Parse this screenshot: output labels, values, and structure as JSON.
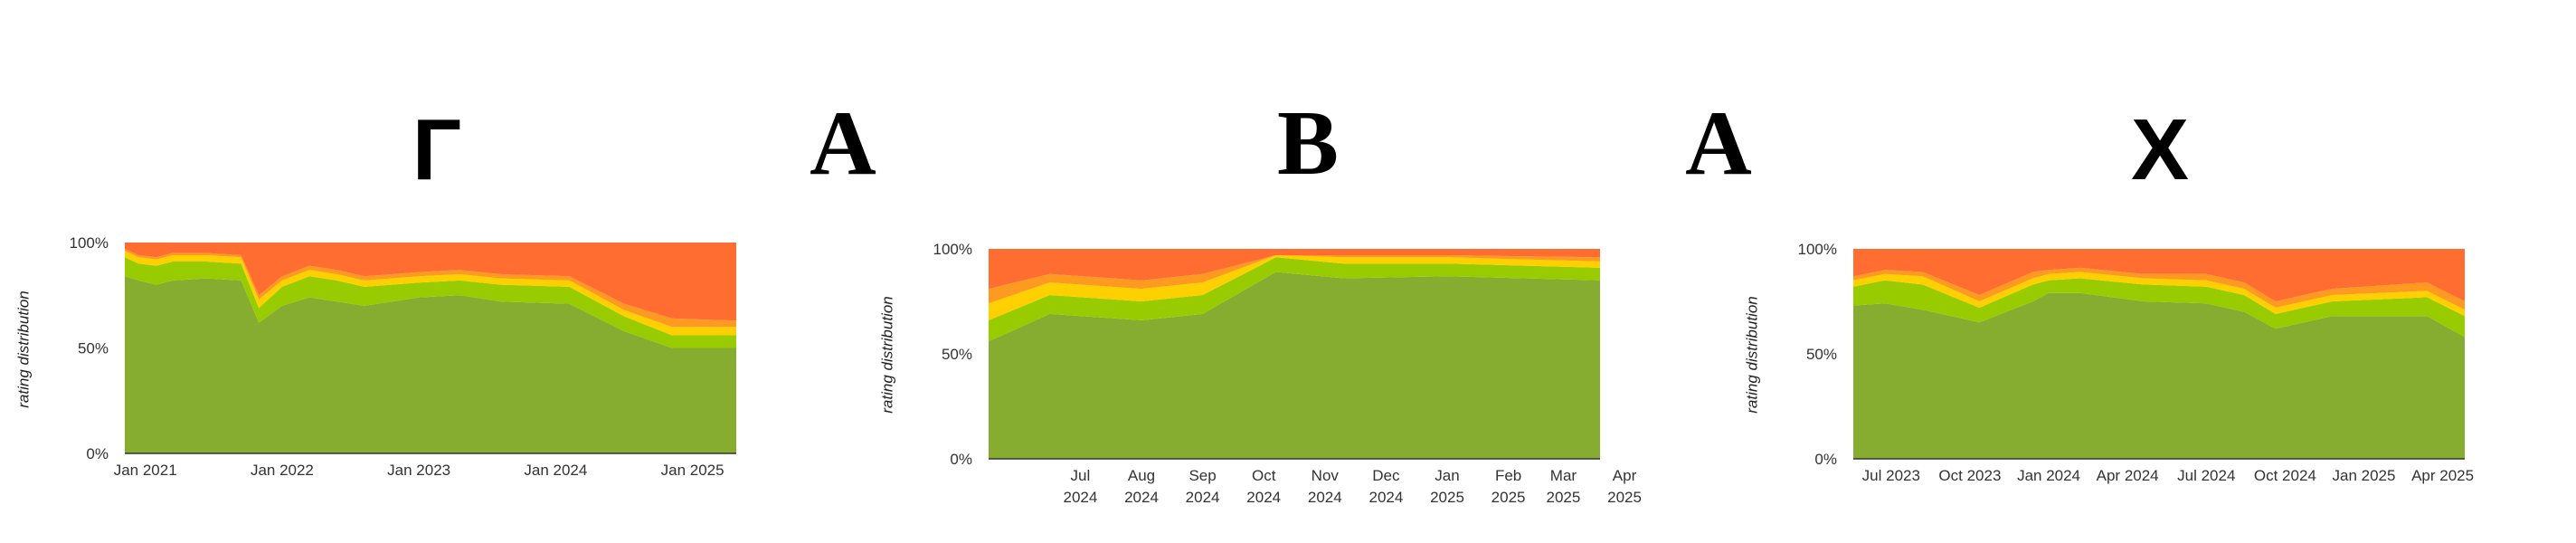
{
  "letters": [
    {
      "text": "Г"
    },
    {
      "text": "Α"
    },
    {
      "text": "В"
    },
    {
      "text": "Α"
    },
    {
      "text": "Х"
    }
  ],
  "colors": {
    "bg_band": "#ff6e30",
    "band_orange2": "#ff9a20",
    "band_yellow": "#ffd000",
    "band_lime": "#99cc00",
    "band_green": "#86ad30"
  },
  "chart_data": [
    {
      "type": "area",
      "stacked": true,
      "ylabel": "rating distribution",
      "yticks": [
        "0%",
        "50%",
        "100%"
      ],
      "ylim": [
        0,
        100
      ],
      "xrange": [
        2020.85,
        2025.32
      ],
      "xticks": [
        {
          "x": 2021.0,
          "label": "Jan 2021"
        },
        {
          "x": 2022.0,
          "label": "Jan 2022"
        },
        {
          "x": 2023.0,
          "label": "Jan 2023"
        },
        {
          "x": 2024.0,
          "label": "Jan 2024"
        },
        {
          "x": 2025.0,
          "label": "Jan 2025"
        }
      ],
      "x": [
        2020.85,
        2020.95,
        2021.08,
        2021.2,
        2021.45,
        2021.7,
        2021.83,
        2022.0,
        2022.2,
        2022.4,
        2022.6,
        2022.8,
        2023.0,
        2023.3,
        2023.6,
        2024.1,
        2024.5,
        2024.85,
        2025.32
      ],
      "series": [
        {
          "values": [
            84,
            82,
            80,
            82,
            83,
            82,
            62,
            70,
            74,
            72,
            70,
            72,
            74,
            75,
            72,
            71,
            58,
            50,
            50
          ]
        },
        {
          "values": [
            9,
            8,
            9,
            9,
            8,
            8,
            7,
            9,
            10,
            10,
            9,
            8,
            7,
            7,
            8,
            8,
            7,
            6,
            6
          ]
        },
        {
          "values": [
            3,
            3,
            3,
            3,
            3,
            3,
            4,
            3,
            3,
            3,
            3,
            3,
            3,
            3,
            3,
            3,
            3,
            4,
            4
          ]
        },
        {
          "values": [
            1,
            1,
            1,
            1,
            1,
            1,
            2,
            2,
            2,
            2,
            2,
            2,
            2,
            2,
            2,
            2,
            3,
            4,
            3
          ]
        },
        {
          "values": [
            3,
            6,
            7,
            5,
            5,
            6,
            25,
            16,
            11,
            13,
            16,
            15,
            14,
            13,
            15,
            16,
            29,
            36,
            37
          ]
        }
      ]
    },
    {
      "type": "area",
      "stacked": true,
      "ylabel": "rating distribution",
      "yticks": [
        "0%",
        "50%",
        "100%"
      ],
      "ylim": [
        0,
        100
      ],
      "xrange": [
        2024.35,
        2025.35
      ],
      "xticks": [
        {
          "x": 2024.5,
          "label": "Jul\n2024"
        },
        {
          "x": 2024.6,
          "label": "Aug\n2024"
        },
        {
          "x": 2024.7,
          "label": "Sep\n2024"
        },
        {
          "x": 2024.8,
          "label": "Oct\n2024"
        },
        {
          "x": 2024.9,
          "label": "Nov\n2024"
        },
        {
          "x": 2025.0,
          "label": "Dec\n2024"
        },
        {
          "x": 2025.1,
          "label": "Jan\n2025"
        },
        {
          "x": 2025.2,
          "label": "Feb\n2025"
        },
        {
          "x": 2025.29,
          "label": "Mar\n2025"
        },
        {
          "x": 2025.39,
          "label": "Apr\n2025"
        }
      ],
      "x": [
        2024.35,
        2024.45,
        2024.6,
        2024.7,
        2024.82,
        2024.93,
        2025.1,
        2025.35
      ],
      "series": [
        {
          "values": [
            56,
            69,
            66,
            69,
            89,
            86,
            87,
            85
          ]
        },
        {
          "values": [
            10,
            9,
            9,
            9,
            7,
            7,
            6,
            6
          ]
        },
        {
          "values": [
            8,
            6,
            6,
            6,
            1,
            3,
            3,
            3
          ]
        },
        {
          "values": [
            7,
            4,
            4,
            4,
            0,
            1,
            1,
            2
          ]
        },
        {
          "values": [
            19,
            12,
            15,
            12,
            3,
            3,
            3,
            4
          ]
        }
      ]
    },
    {
      "type": "area",
      "stacked": true,
      "ylabel": "rating distribution",
      "yticks": [
        "0%",
        "50%",
        "100%"
      ],
      "ylim": [
        0,
        100
      ],
      "xrange": [
        2023.38,
        2025.32
      ],
      "xticks": [
        {
          "x": 2023.5,
          "label": "Jul 2023"
        },
        {
          "x": 2023.75,
          "label": "Oct 2023"
        },
        {
          "x": 2024.0,
          "label": "Jan 2024"
        },
        {
          "x": 2024.25,
          "label": "Apr 2024"
        },
        {
          "x": 2024.5,
          "label": "Jul 2024"
        },
        {
          "x": 2024.75,
          "label": "Oct 2024"
        },
        {
          "x": 2025.0,
          "label": "Jan 2025"
        },
        {
          "x": 2025.25,
          "label": "Apr 2025"
        }
      ],
      "x": [
        2023.38,
        2023.48,
        2023.6,
        2023.78,
        2023.95,
        2024.0,
        2024.1,
        2024.3,
        2024.5,
        2024.62,
        2024.72,
        2024.9,
        2025.2,
        2025.32
      ],
      "series": [
        {
          "values": [
            73,
            74,
            71,
            65,
            75,
            79,
            79,
            75,
            74,
            70,
            62,
            68,
            68,
            58
          ]
        },
        {
          "values": [
            9,
            11,
            12,
            7,
            8,
            6,
            7,
            8,
            8,
            8,
            7,
            7,
            9,
            10
          ]
        },
        {
          "values": [
            3,
            3,
            4,
            3,
            3,
            3,
            3,
            3,
            3,
            3,
            3,
            3,
            3,
            3
          ]
        },
        {
          "values": [
            2,
            2,
            2,
            3,
            3,
            2,
            2,
            2,
            3,
            3,
            3,
            3,
            4,
            4
          ]
        },
        {
          "values": [
            13,
            10,
            11,
            22,
            11,
            10,
            9,
            12,
            12,
            16,
            25,
            19,
            16,
            25
          ]
        }
      ]
    }
  ]
}
